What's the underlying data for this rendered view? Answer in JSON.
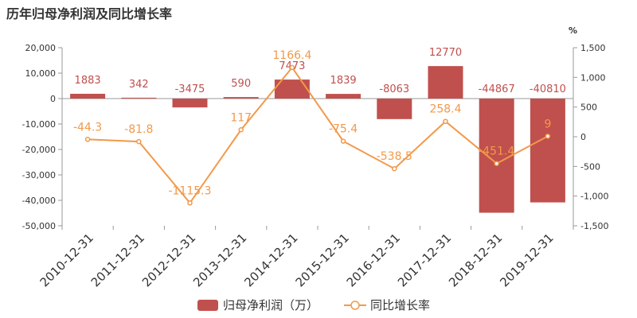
{
  "chart_data": {
    "type": "bar",
    "title": "历年归母净利润及同比增长率",
    "categories": [
      "2010-12-31",
      "2011-12-31",
      "2012-12-31",
      "2013-12-31",
      "2014-12-31",
      "2015-12-31",
      "2016-12-31",
      "2017-12-31",
      "2018-12-31",
      "2019-12-31"
    ],
    "series": [
      {
        "name": "归母净利润（万）",
        "kind": "bar",
        "axis": "left",
        "color": "#c0504d",
        "values": [
          1883,
          342,
          -3475,
          590,
          7473,
          1839,
          -8063,
          12770,
          -44867,
          -40810
        ],
        "labels": [
          "1883",
          "342",
          "-3475",
          "590",
          "7473",
          "1839",
          "-8063",
          "12770",
          "-44867",
          "-40810"
        ]
      },
      {
        "name": "同比增长率",
        "kind": "line",
        "axis": "right",
        "color": "#f2994a",
        "values": [
          -44.3,
          -81.8,
          -1115.3,
          117,
          1166.4,
          -75.4,
          -538.5,
          258.4,
          -451.4,
          9
        ],
        "labels": [
          "-44.3",
          "-81.8",
          "-1115.3",
          "117",
          "1166.4",
          "-75.4",
          "-538.5",
          "258.4",
          "-451.4",
          "9"
        ]
      }
    ],
    "y_left": {
      "min": -50000,
      "max": 20000,
      "ticks": [
        20000,
        10000,
        0,
        -10000,
        -20000,
        -30000,
        -40000,
        -50000
      ],
      "tick_labels": [
        "20,000",
        "10,000",
        "0",
        "-10,000",
        "-20,000",
        "-30,000",
        "-40,000",
        "-50,000"
      ]
    },
    "y_right": {
      "min": -1500,
      "max": 1500,
      "unit": "%",
      "ticks": [
        1500,
        1000,
        500,
        0,
        -500,
        -1000,
        -1500
      ],
      "tick_labels": [
        "1,500",
        "1,000",
        "500",
        "0",
        "-500",
        "-1,000",
        "-1,500"
      ]
    },
    "legend": {
      "position": "bottom"
    },
    "grid": false
  }
}
